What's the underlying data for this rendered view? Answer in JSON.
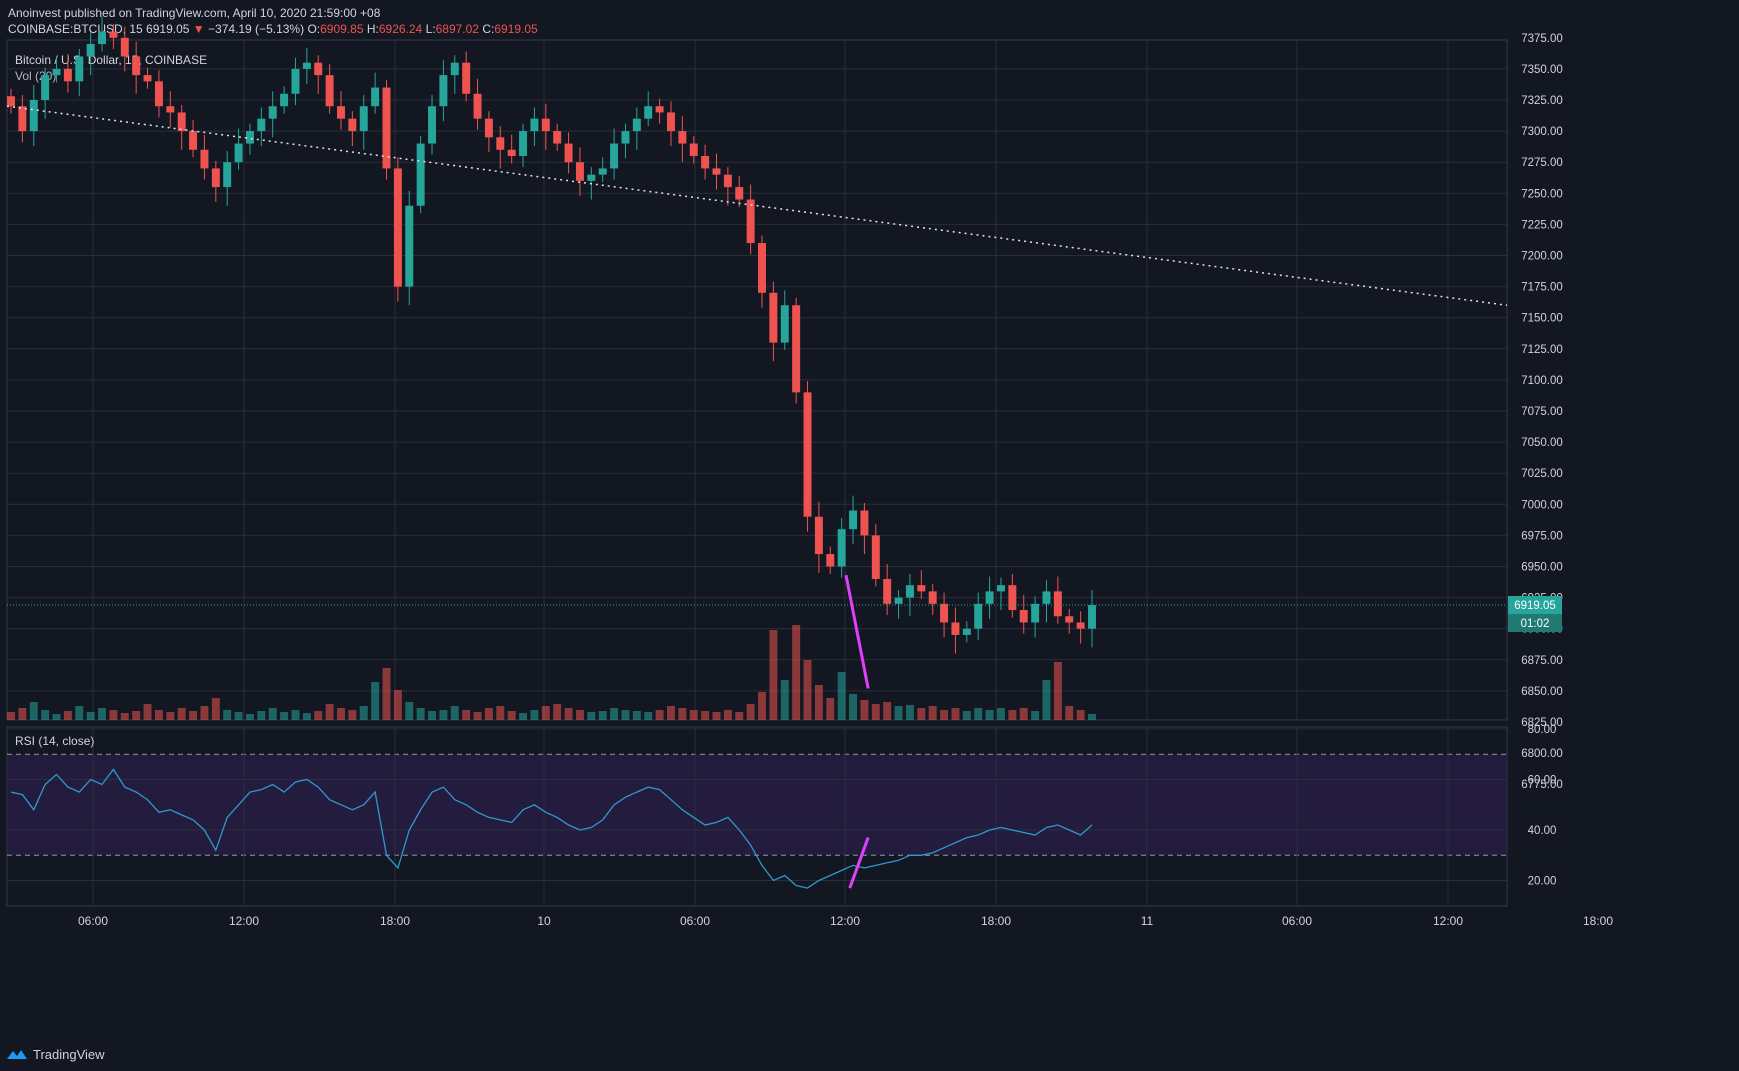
{
  "header": {
    "publisher": "Anoinvest published on TradingView.com, April 10, 2020 21:59:00 +08",
    "symbol": "COINBASE:BTCUSD, 15",
    "last": "6919.05",
    "change": "−374.19 (−5.13%)",
    "o_label": "O:",
    "o": "6909.85",
    "h_label": "H:",
    "h": "6926.24",
    "l_label": "L:",
    "l": "6897.02",
    "c_label": "C:",
    "c": "6919.05"
  },
  "footer": {
    "brand": "TradingView"
  },
  "colors": {
    "bg": "#131722",
    "up": "#26a69a",
    "down": "#ef5350",
    "grid": "#2a2e39",
    "trendline": "#e040fb",
    "rsi": "#2e99c9",
    "rsi_band": "#2a1f4a"
  },
  "chart_data": [
    {
      "type": "candlestick",
      "title": "Bitcoin / U.S. Dollar, 15, COINBASE",
      "volume_label": "Vol (20)",
      "interval": "15",
      "x_ticks": [
        "06:00",
        "12:00",
        "18:00",
        "10",
        "06:00",
        "12:00",
        "18:00",
        "11",
        "06:00",
        "12:00",
        "18:00"
      ],
      "y_ticks": [
        "7375.00",
        "7350.00",
        "7325.00",
        "7300.00",
        "7275.00",
        "7250.00",
        "7225.00",
        "7200.00",
        "7175.00",
        "7150.00",
        "7125.00",
        "7100.00",
        "7075.00",
        "7050.00",
        "7025.00",
        "7000.00",
        "6975.00",
        "6950.00",
        "6925.00",
        "6900.00",
        "6875.00",
        "6850.00",
        "6825.00",
        "6800.00",
        "6775.00"
      ],
      "ylim": [
        6775,
        7385
      ],
      "last_price_label": "6919.05",
      "countdown_label": "01:02",
      "series": [
        {
          "name": "price_path_close",
          "values": [
            7320,
            7300,
            7325,
            7345,
            7350,
            7340,
            7360,
            7370,
            7380,
            7375,
            7360,
            7345,
            7340,
            7320,
            7315,
            7300,
            7285,
            7270,
            7255,
            7275,
            7290,
            7300,
            7310,
            7320,
            7330,
            7350,
            7355,
            7345,
            7320,
            7310,
            7300,
            7320,
            7335,
            7270,
            7175,
            7240,
            7290,
            7320,
            7345,
            7355,
            7330,
            7310,
            7295,
            7285,
            7280,
            7300,
            7310,
            7300,
            7290,
            7275,
            7260,
            7265,
            7270,
            7290,
            7300,
            7310,
            7320,
            7315,
            7300,
            7290,
            7280,
            7270,
            7265,
            7255,
            7245,
            7210,
            7170,
            7130,
            7160,
            7090,
            6990,
            6960,
            6950,
            6980,
            6995,
            6975,
            6940,
            6920,
            6925,
            6935,
            6930,
            6920,
            6905,
            6895,
            6900,
            6920,
            6930,
            6935,
            6915,
            6905,
            6920,
            6930,
            6910,
            6905,
            6900,
            6919
          ]
        },
        {
          "name": "volume_relative",
          "values": [
            8,
            12,
            18,
            10,
            6,
            9,
            14,
            8,
            12,
            10,
            7,
            9,
            16,
            10,
            8,
            12,
            9,
            14,
            22,
            10,
            8,
            6,
            9,
            12,
            8,
            10,
            7,
            9,
            16,
            12,
            10,
            14,
            38,
            52,
            30,
            18,
            12,
            9,
            10,
            14,
            10,
            8,
            12,
            14,
            9,
            7,
            10,
            14,
            16,
            12,
            10,
            8,
            9,
            12,
            10,
            9,
            8,
            10,
            14,
            12,
            10,
            9,
            8,
            10,
            8,
            16,
            28,
            90,
            40,
            95,
            60,
            35,
            22,
            48,
            26,
            20,
            16,
            18,
            14,
            15,
            12,
            14,
            10,
            12,
            9,
            12,
            10,
            12,
            10,
            12,
            9,
            40,
            58,
            14,
            10,
            6
          ]
        },
        {
          "name": "trendline_dotted",
          "values": [
            [
              0,
              7320
            ],
            [
              1500,
              7160
            ]
          ]
        },
        {
          "name": "trendline_support",
          "values": [
            [
              12.0,
              6943
            ],
            [
              12.88,
              6852
            ]
          ]
        }
      ]
    },
    {
      "type": "line",
      "title": "RSI (14, close)",
      "y_ticks": [
        "80.00",
        "60.00",
        "40.00",
        "20.00"
      ],
      "ylim": [
        10,
        80
      ],
      "bands": [
        30,
        70
      ],
      "series": [
        {
          "name": "rsi",
          "values": [
            55,
            54,
            48,
            58,
            62,
            57,
            55,
            60,
            58,
            64,
            57,
            55,
            52,
            47,
            48,
            46,
            44,
            40,
            32,
            45,
            50,
            55,
            56,
            58,
            55,
            59,
            60,
            57,
            52,
            50,
            48,
            50,
            55,
            30,
            25,
            40,
            48,
            55,
            57,
            52,
            50,
            47,
            45,
            44,
            43,
            48,
            50,
            47,
            45,
            42,
            40,
            41,
            44,
            50,
            53,
            55,
            57,
            56,
            52,
            48,
            45,
            42,
            43,
            45,
            40,
            34,
            26,
            20,
            22,
            18,
            17,
            20,
            22,
            24,
            26,
            25,
            26,
            27,
            28,
            30,
            30,
            31,
            33,
            35,
            37,
            38,
            40,
            41,
            40,
            39,
            38,
            41,
            42,
            40,
            38,
            42
          ]
        },
        {
          "name": "trendline_divergence",
          "values": [
            [
              12.15,
              17
            ],
            [
              12.88,
              37
            ]
          ]
        }
      ]
    }
  ]
}
